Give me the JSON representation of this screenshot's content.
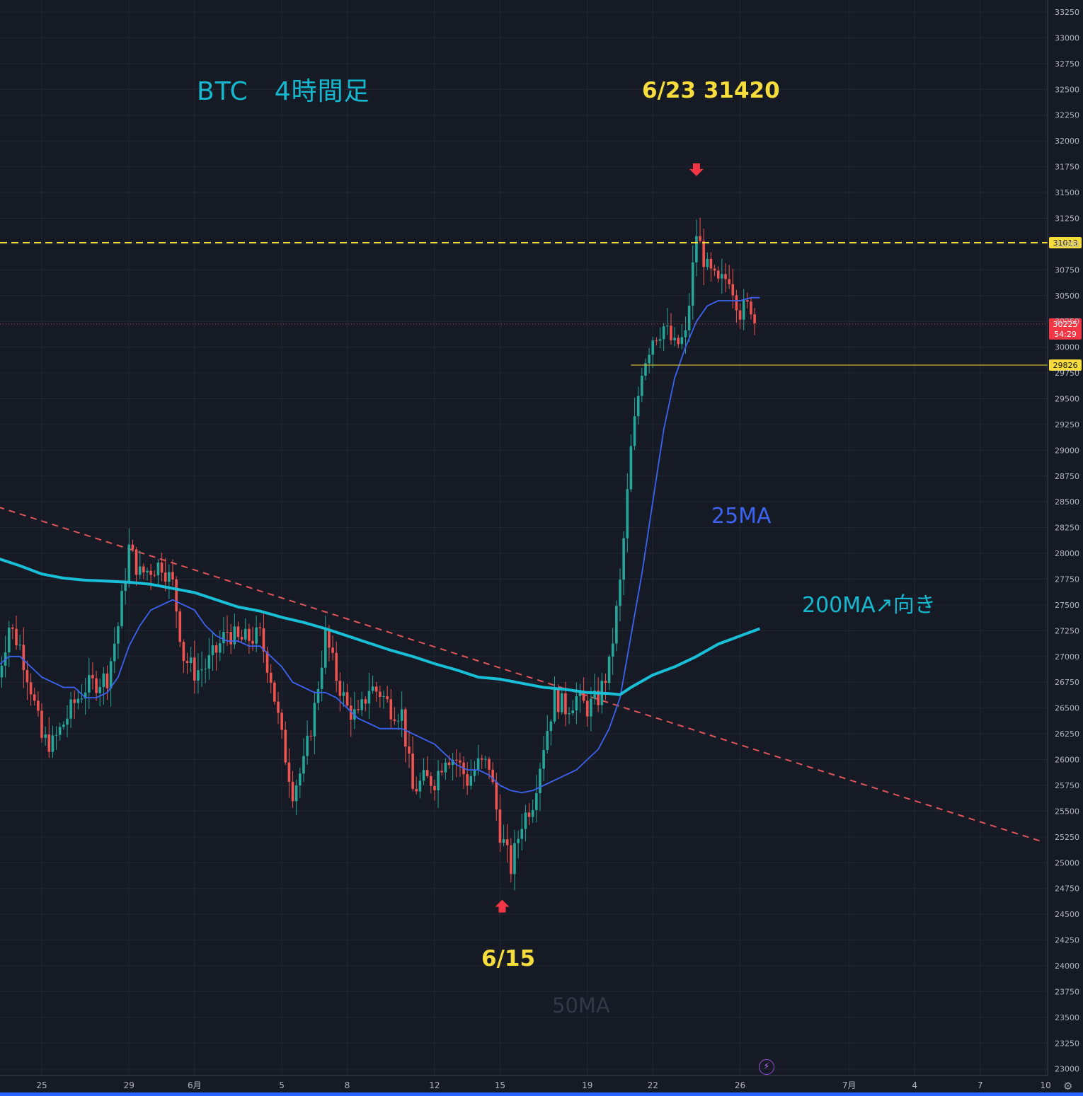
{
  "annotations": {
    "title": "BTC　4時間足",
    "high": "6/23 31420",
    "low": "6/15",
    "ma25": "25MA",
    "ma200": "200MA↗向き",
    "ma50": "50MA"
  },
  "colors": {
    "background": "#161a25",
    "grid": "#232734",
    "up": "#26a69a",
    "down": "#ef5350",
    "ma25": "#3c63f0",
    "ma200": "#19bfd6",
    "trendline": "#e05559",
    "resistance": "#f6dd3b",
    "support": "#cdb437",
    "price_label": "#f23645"
  },
  "icons": {
    "flash": "flash-icon",
    "settings": "gear-icon"
  },
  "chart_data": {
    "type": "candlestick",
    "symbol": "BTC",
    "timeframe": "4時間足",
    "x_axis": {
      "ticks": [
        {
          "label": "25",
          "day": 25
        },
        {
          "label": "29",
          "day": 29
        },
        {
          "label": "6月",
          "day": 32
        },
        {
          "label": "5",
          "day": 36
        },
        {
          "label": "8",
          "day": 39
        },
        {
          "label": "12",
          "day": 43
        },
        {
          "label": "15",
          "day": 46
        },
        {
          "label": "19",
          "day": 50
        },
        {
          "label": "22",
          "day": 53
        },
        {
          "label": "26",
          "day": 57
        },
        {
          "label": "7月",
          "day": 62
        },
        {
          "label": "4",
          "day": 65
        },
        {
          "label": "7",
          "day": 68
        },
        {
          "label": "10",
          "day": 71
        }
      ]
    },
    "y_axis": {
      "ticks": [
        23000,
        23250,
        23500,
        23750,
        24000,
        24250,
        24500,
        24750,
        25000,
        25250,
        25500,
        25750,
        26000,
        26250,
        26500,
        26750,
        27000,
        27250,
        27500,
        27750,
        28000,
        28250,
        28500,
        28750,
        29000,
        29250,
        29500,
        29750,
        30000,
        30250,
        30500,
        30750,
        31000,
        31250,
        31500,
        31750,
        32000,
        32250,
        32500,
        32750,
        33000,
        33250
      ],
      "range": [
        22870,
        33340
      ]
    },
    "ohlc_anchors": [
      [
        23.0,
        26800
      ],
      [
        23.5,
        27300
      ],
      [
        24.0,
        27100
      ],
      [
        24.5,
        26700
      ],
      [
        25.0,
        26200
      ],
      [
        25.5,
        26150
      ],
      [
        26.0,
        26350
      ],
      [
        26.5,
        26550
      ],
      [
        27.0,
        26700
      ],
      [
        27.5,
        26750
      ],
      [
        28.0,
        26800
      ],
      [
        28.5,
        27300
      ],
      [
        29.0,
        28050
      ],
      [
        29.5,
        27800
      ],
      [
        30.5,
        27900
      ],
      [
        31.0,
        27700
      ],
      [
        31.5,
        27000
      ],
      [
        32.0,
        26850
      ],
      [
        32.5,
        26900
      ],
      [
        33.0,
        27050
      ],
      [
        33.5,
        27250
      ],
      [
        34.0,
        27150
      ],
      [
        35.0,
        27200
      ],
      [
        35.5,
        26800
      ],
      [
        36.0,
        26200
      ],
      [
        36.5,
        25700
      ],
      [
        37.0,
        25950
      ],
      [
        37.5,
        26500
      ],
      [
        38.0,
        27200
      ],
      [
        38.5,
        26800
      ],
      [
        39.0,
        26500
      ],
      [
        39.5,
        26400
      ],
      [
        40.0,
        26700
      ],
      [
        40.5,
        26650
      ],
      [
        41.0,
        26500
      ],
      [
        41.5,
        26450
      ],
      [
        42.0,
        25700
      ],
      [
        42.5,
        25800
      ],
      [
        43.0,
        25800
      ],
      [
        43.5,
        26050
      ],
      [
        44.0,
        26000
      ],
      [
        44.5,
        25800
      ],
      [
        45.0,
        25950
      ],
      [
        45.5,
        25950
      ],
      [
        46.0,
        25300
      ],
      [
        46.5,
        24950
      ],
      [
        47.0,
        25400
      ],
      [
        47.5,
        25600
      ],
      [
        48.0,
        26150
      ],
      [
        48.5,
        26600
      ],
      [
        49.0,
        26500
      ],
      [
        49.5,
        26600
      ],
      [
        50.0,
        26500
      ],
      [
        50.5,
        26600
      ],
      [
        51.0,
        26900
      ],
      [
        51.5,
        27700
      ],
      [
        52.0,
        29000
      ],
      [
        52.5,
        29800
      ],
      [
        53.0,
        30100
      ],
      [
        53.5,
        30200
      ],
      [
        54.0,
        30000
      ],
      [
        54.5,
        30100
      ],
      [
        55.0,
        31100
      ],
      [
        55.5,
        30750
      ],
      [
        56.0,
        30600
      ],
      [
        56.5,
        30700
      ],
      [
        57.0,
        30350
      ],
      [
        57.5,
        30400
      ],
      [
        57.7,
        30225
      ]
    ],
    "series": [
      {
        "name": "25MA",
        "points": [
          [
            23.0,
            26910
          ],
          [
            23.5,
            27000
          ],
          [
            24.0,
            27000
          ],
          [
            24.5,
            26900
          ],
          [
            25.0,
            26800
          ],
          [
            25.5,
            26750
          ],
          [
            26.0,
            26700
          ],
          [
            26.5,
            26700
          ],
          [
            27.0,
            26600
          ],
          [
            27.5,
            26600
          ],
          [
            28.0,
            26650
          ],
          [
            28.5,
            26800
          ],
          [
            29.0,
            27100
          ],
          [
            29.5,
            27300
          ],
          [
            30.0,
            27450
          ],
          [
            30.5,
            27500
          ],
          [
            31.0,
            27550
          ],
          [
            31.5,
            27500
          ],
          [
            32.0,
            27450
          ],
          [
            32.5,
            27300
          ],
          [
            33.0,
            27200
          ],
          [
            33.5,
            27150
          ],
          [
            34.0,
            27150
          ],
          [
            34.5,
            27100
          ],
          [
            35.0,
            27100
          ],
          [
            35.5,
            27000
          ],
          [
            36.0,
            26900
          ],
          [
            36.5,
            26750
          ],
          [
            37.0,
            26700
          ],
          [
            37.5,
            26650
          ],
          [
            38.0,
            26650
          ],
          [
            38.5,
            26600
          ],
          [
            39.0,
            26500
          ],
          [
            39.5,
            26400
          ],
          [
            40.0,
            26350
          ],
          [
            40.5,
            26300
          ],
          [
            41.0,
            26300
          ],
          [
            41.5,
            26300
          ],
          [
            42.0,
            26250
          ],
          [
            42.5,
            26200
          ],
          [
            43.0,
            26150
          ],
          [
            43.5,
            26050
          ],
          [
            44.0,
            25950
          ],
          [
            44.5,
            25900
          ],
          [
            45.0,
            25900
          ],
          [
            45.5,
            25850
          ],
          [
            46.0,
            25750
          ],
          [
            46.5,
            25700
          ],
          [
            47.0,
            25680
          ],
          [
            47.5,
            25700
          ],
          [
            48.0,
            25750
          ],
          [
            48.5,
            25800
          ],
          [
            49.0,
            25850
          ],
          [
            49.5,
            25900
          ],
          [
            50.0,
            26000
          ],
          [
            50.5,
            26100
          ],
          [
            51.0,
            26300
          ],
          [
            51.5,
            26600
          ],
          [
            52.0,
            27200
          ],
          [
            52.5,
            27800
          ],
          [
            53.0,
            28500
          ],
          [
            53.5,
            29200
          ],
          [
            54.0,
            29700
          ],
          [
            54.5,
            30000
          ],
          [
            55.0,
            30250
          ],
          [
            55.5,
            30400
          ],
          [
            56.0,
            30450
          ],
          [
            56.5,
            30450
          ],
          [
            57.0,
            30450
          ],
          [
            57.5,
            30480
          ],
          [
            57.9,
            30480
          ]
        ]
      },
      {
        "name": "200MA",
        "points": [
          [
            23.0,
            27950
          ],
          [
            24.0,
            27880
          ],
          [
            25.0,
            27800
          ],
          [
            26.0,
            27760
          ],
          [
            27.0,
            27740
          ],
          [
            28.0,
            27730
          ],
          [
            29.0,
            27720
          ],
          [
            30.0,
            27700
          ],
          [
            31.0,
            27660
          ],
          [
            32.0,
            27620
          ],
          [
            33.0,
            27550
          ],
          [
            34.0,
            27480
          ],
          [
            35.0,
            27440
          ],
          [
            36.0,
            27380
          ],
          [
            37.0,
            27330
          ],
          [
            38.0,
            27270
          ],
          [
            39.0,
            27200
          ],
          [
            40.0,
            27130
          ],
          [
            41.0,
            27060
          ],
          [
            42.0,
            27000
          ],
          [
            43.0,
            26930
          ],
          [
            44.0,
            26870
          ],
          [
            45.0,
            26800
          ],
          [
            46.0,
            26780
          ],
          [
            47.0,
            26740
          ],
          [
            48.0,
            26700
          ],
          [
            49.0,
            26680
          ],
          [
            50.0,
            26650
          ],
          [
            51.0,
            26640
          ],
          [
            51.5,
            26630
          ],
          [
            52.0,
            26700
          ],
          [
            53.0,
            26820
          ],
          [
            54.0,
            26900
          ],
          [
            55.0,
            27000
          ],
          [
            56.0,
            27120
          ],
          [
            57.0,
            27200
          ],
          [
            57.9,
            27270
          ]
        ]
      }
    ],
    "levels": [
      {
        "value": 31013,
        "label": "31013",
        "style": "dashed"
      },
      {
        "value": 29826,
        "label": "29826",
        "style": "solid",
        "from_day": 52.0
      }
    ],
    "current_price": {
      "value": 30225,
      "label": "30225",
      "countdown": "54:29"
    },
    "trendline": [
      [
        23.0,
        28450
      ],
      [
        70.9,
        25200
      ]
    ],
    "markers": [
      {
        "day": 55.0,
        "price": 31700,
        "direction": "down"
      },
      {
        "day": 46.1,
        "price": 24600,
        "direction": "up"
      }
    ]
  }
}
